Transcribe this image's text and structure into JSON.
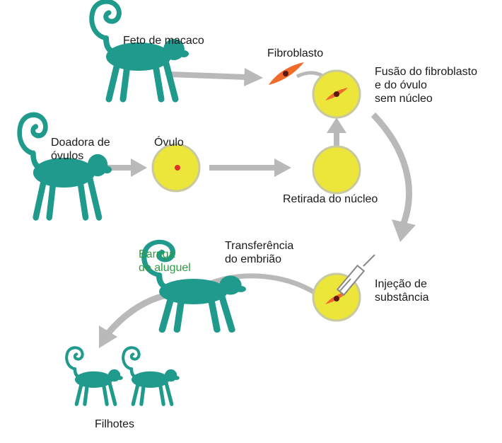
{
  "labels": {
    "feto": "Feto de macaco",
    "fibroblasto": "Fibroblasto",
    "fusao": "Fusão do fibroblasto\ne do óvulo\nsem núcleo",
    "doadora": "Doadora de\nóvulos",
    "ovulo": "Óvulo",
    "retirada": "Retirada do núcleo",
    "transferencia": "Transferência\ndo embrião",
    "barriga": "Barriga\nde aluguel",
    "injecao": "Injeção de\nsubstância",
    "filhotes": "Filhotes"
  },
  "colors": {
    "monkey": "#1f9a8c",
    "arrow": "#b9b9b9",
    "egg_fill": "#ece53a",
    "egg_ring": "#c9c9a0",
    "nucleus": "#e0322b",
    "fibroblast": "#f06a2a",
    "surrogate_text": "#2e9b46"
  },
  "icons": [
    "monkey-icon",
    "egg-cell-icon",
    "fibroblast-icon",
    "syringe-icon",
    "arrow-icon"
  ]
}
